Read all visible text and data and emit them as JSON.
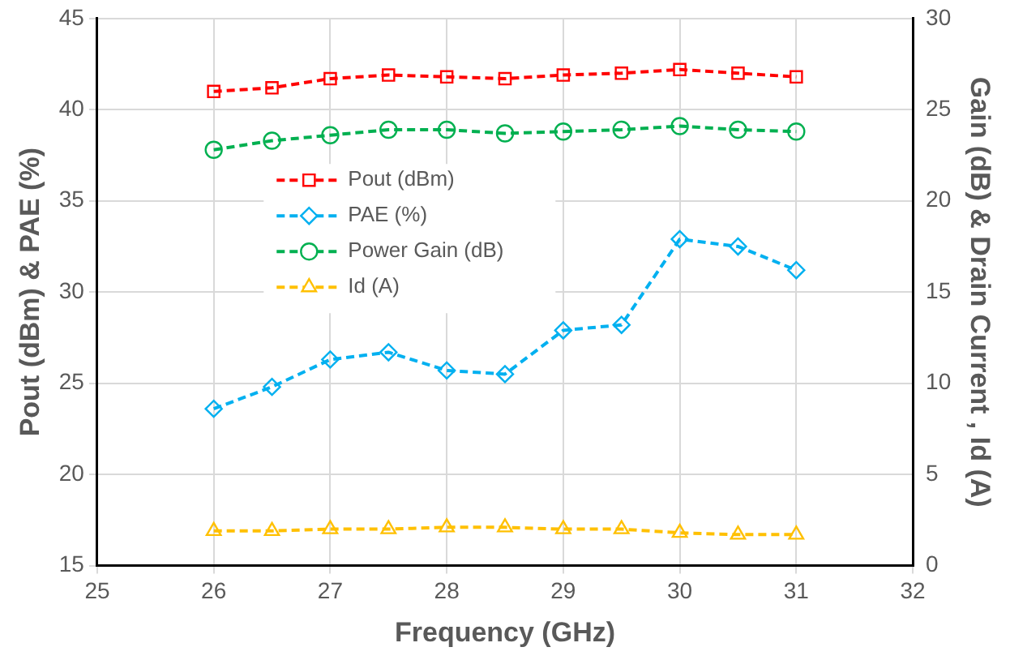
{
  "chart_data": {
    "type": "line",
    "xlabel": "Frequency (GHz)",
    "ylabel": "Pout (dBm) & PAE (%)",
    "y2label": "Gain (dB) & Drain Current , Id (A)",
    "x": [
      26,
      26.5,
      27,
      27.5,
      28,
      28.5,
      29,
      29.5,
      30,
      30.5,
      31
    ],
    "xlim": [
      25,
      32
    ],
    "xticks": [
      25,
      26,
      27,
      28,
      29,
      30,
      31,
      32
    ],
    "ylim": [
      15,
      45
    ],
    "yticks": [
      15,
      20,
      25,
      30,
      35,
      40,
      45
    ],
    "y2lim": [
      0,
      30
    ],
    "y2ticks": [
      0,
      5,
      10,
      15,
      20,
      25,
      30
    ],
    "grid": true,
    "legend": "center left",
    "line_style": "dashed",
    "series": [
      {
        "name": "Pout (dBm)",
        "color": "#ff0000",
        "marker": "square",
        "values": [
          41.0,
          41.2,
          41.7,
          41.9,
          41.8,
          41.7,
          41.9,
          42.0,
          42.2,
          42.0,
          41.8
        ]
      },
      {
        "name": "PAE (%)",
        "color": "#00b0f0",
        "marker": "diamond",
        "values": [
          23.6,
          24.8,
          26.3,
          26.7,
          25.7,
          25.5,
          27.9,
          28.2,
          32.9,
          32.5,
          31.2
        ]
      },
      {
        "name": "Power Gain (dB)",
        "color": "#00b050",
        "marker": "circle",
        "axis": "y2",
        "values": [
          22.8,
          23.3,
          23.6,
          23.9,
          23.9,
          23.7,
          23.8,
          23.9,
          24.1,
          23.9,
          23.8
        ]
      },
      {
        "name": "Id (A)",
        "color": "#ffc000",
        "marker": "triangle",
        "axis": "y2",
        "values": [
          1.9,
          1.9,
          2.0,
          2.0,
          2.1,
          2.1,
          2.0,
          2.0,
          1.8,
          1.7,
          1.7
        ]
      }
    ]
  }
}
